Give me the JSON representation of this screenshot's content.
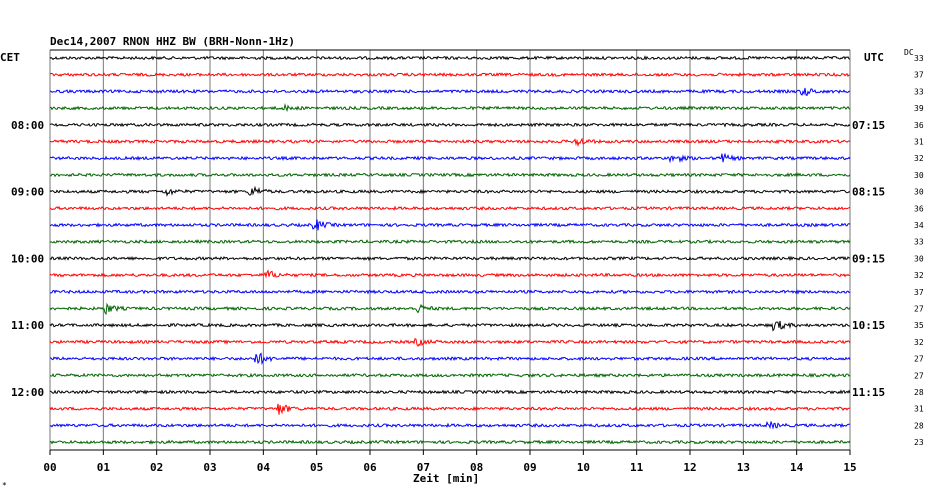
{
  "chart_data": {
    "type": "line",
    "title": "Dec14,2007   RNON HHZ BW (BRH-Nonn-1Hz)",
    "left_timezone": "CET",
    "right_timezone": "UTC",
    "dc_label": "DC",
    "xlabel": "Zeit [min]",
    "xlim": [
      0,
      15
    ],
    "x_ticks": [
      "00",
      "01",
      "02",
      "03",
      "04",
      "05",
      "06",
      "07",
      "08",
      "09",
      "10",
      "11",
      "12",
      "13",
      "14",
      "15"
    ],
    "corner_mark": "*",
    "grid": true,
    "trace_colors": [
      "#000000",
      "#ff0000",
      "#0000ff",
      "#006400"
    ],
    "left_time_labels": [
      {
        "trace": 4,
        "label": "08:00"
      },
      {
        "trace": 8,
        "label": "09:00"
      },
      {
        "trace": 12,
        "label": "10:00"
      },
      {
        "trace": 16,
        "label": "11:00"
      },
      {
        "trace": 20,
        "label": "12:00"
      }
    ],
    "right_time_labels": [
      {
        "trace": 4,
        "label": "07:15"
      },
      {
        "trace": 8,
        "label": "08:15"
      },
      {
        "trace": 12,
        "label": "09:15"
      },
      {
        "trace": 16,
        "label": "10:15"
      },
      {
        "trace": 20,
        "label": "11:15"
      }
    ],
    "dc_values": [
      "33",
      "37",
      "33",
      "39",
      "36",
      "31",
      "32",
      "30",
      "30",
      "36",
      "34",
      "33",
      "30",
      "32",
      "37",
      "27",
      "35",
      "32",
      "27",
      "27",
      "28",
      "31",
      "28",
      "23"
    ],
    "events": [
      {
        "trace": 2,
        "minute": 14.15,
        "amp": 4
      },
      {
        "trace": 3,
        "minute": 4.4,
        "amp": 2
      },
      {
        "trace": 5,
        "minute": 9.9,
        "amp": 4
      },
      {
        "trace": 6,
        "minute": 11.7,
        "amp": 4
      },
      {
        "trace": 6,
        "minute": 12.6,
        "amp": 4
      },
      {
        "trace": 8,
        "minute": 2.2,
        "amp": 3
      },
      {
        "trace": 8,
        "minute": 3.8,
        "amp": 5
      },
      {
        "trace": 10,
        "minute": 5.0,
        "amp": 5
      },
      {
        "trace": 13,
        "minute": 4.1,
        "amp": 4
      },
      {
        "trace": 15,
        "minute": 1.05,
        "amp": 5
      },
      {
        "trace": 15,
        "minute": 6.9,
        "amp": 4
      },
      {
        "trace": 16,
        "minute": 13.6,
        "amp": 6
      },
      {
        "trace": 17,
        "minute": 6.9,
        "amp": 3
      },
      {
        "trace": 18,
        "minute": 3.9,
        "amp": 6
      },
      {
        "trace": 21,
        "minute": 4.3,
        "amp": 6
      },
      {
        "trace": 22,
        "minute": 13.5,
        "amp": 3
      }
    ]
  }
}
